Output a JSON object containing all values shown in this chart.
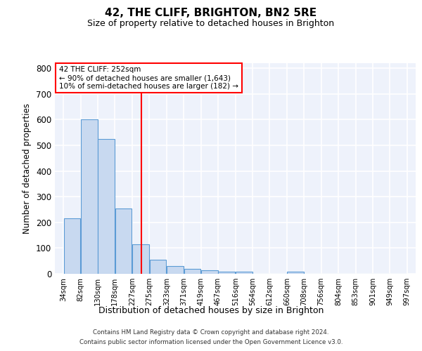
{
  "title": "42, THE CLIFF, BRIGHTON, BN2 5RE",
  "subtitle": "Size of property relative to detached houses in Brighton",
  "xlabel": "Distribution of detached houses by size in Brighton",
  "ylabel": "Number of detached properties",
  "bin_labels": [
    "34sqm",
    "82sqm",
    "130sqm",
    "178sqm",
    "227sqm",
    "275sqm",
    "323sqm",
    "371sqm",
    "419sqm",
    "467sqm",
    "516sqm",
    "564sqm",
    "612sqm",
    "660sqm",
    "708sqm",
    "756sqm",
    "804sqm",
    "853sqm",
    "901sqm",
    "949sqm",
    "997sqm"
  ],
  "bin_edges": [
    34,
    82,
    130,
    178,
    227,
    275,
    323,
    371,
    419,
    467,
    516,
    564,
    612,
    660,
    708,
    756,
    804,
    853,
    901,
    949,
    997
  ],
  "bar_heights": [
    215,
    600,
    525,
    255,
    115,
    55,
    30,
    20,
    13,
    8,
    8,
    0,
    0,
    8,
    0,
    0,
    0,
    0,
    0,
    0
  ],
  "bar_color": "#c8d9f0",
  "bar_edge_color": "#5b9bd5",
  "red_line_x": 252,
  "ylim": [
    0,
    820
  ],
  "yticks": [
    0,
    100,
    200,
    300,
    400,
    500,
    600,
    700,
    800
  ],
  "annotation_line1": "42 THE CLIFF: 252sqm",
  "annotation_line2": "← 90% of detached houses are smaller (1,643)",
  "annotation_line3": "10% of semi-detached houses are larger (182) →",
  "bg_color": "#eef2fb",
  "grid_color": "white",
  "footer_line1": "Contains HM Land Registry data © Crown copyright and database right 2024.",
  "footer_line2": "Contains public sector information licensed under the Open Government Licence v3.0."
}
